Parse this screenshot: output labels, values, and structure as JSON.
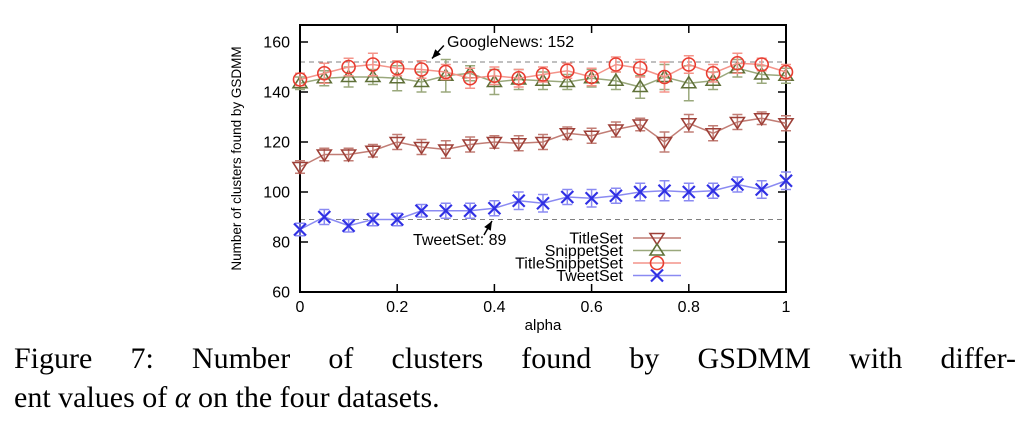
{
  "figure": {
    "caption": {
      "line1": "Figure 7: Number of clusters found by GSDMM with differ-",
      "line2_pre": "ent values of ",
      "alpha_symbol": "α",
      "line2_post": " on the four datasets."
    }
  },
  "chart_data": {
    "type": "line",
    "title": "",
    "xlabel": "alpha",
    "ylabel": "Number of clusters found by GSDMM",
    "xlim": [
      0,
      1
    ],
    "ylim": [
      60,
      166.8
    ],
    "grid": false,
    "legend_position": "bottom-right-inside",
    "x_ticks": {
      "values": [
        0,
        0.2,
        0.4,
        0.6,
        0.8,
        1
      ],
      "labels": [
        "0",
        "0.2",
        "0.4",
        "0.6",
        "0.8",
        "1"
      ]
    },
    "y_ticks": {
      "values": [
        60,
        80,
        100,
        120,
        140,
        160
      ],
      "labels": [
        "60",
        "80",
        "100",
        "120",
        "140",
        "160"
      ]
    },
    "x": [
      0,
      0.05,
      0.1,
      0.15,
      0.2,
      0.25,
      0.3,
      0.35,
      0.4,
      0.45,
      0.5,
      0.55,
      0.6,
      0.65,
      0.7,
      0.75,
      0.8,
      0.85,
      0.9,
      0.95,
      1
    ],
    "series": [
      {
        "name": "TitleSet",
        "marker": "triangle-down",
        "line_color": "#c17d75",
        "marker_color": "#9e4038",
        "values": [
          110,
          115,
          115,
          116.5,
          120,
          118,
          117,
          119,
          120,
          119.5,
          120,
          123.5,
          122.5,
          125,
          127,
          120,
          127.5,
          123.5,
          128,
          129.5,
          127.5
        ],
        "errors": [
          2.5,
          2.5,
          2.5,
          2.5,
          3,
          3,
          3.5,
          3,
          2.5,
          3,
          3,
          2.5,
          3,
          3,
          2.5,
          4,
          3.5,
          3,
          3,
          2.5,
          3
        ]
      },
      {
        "name": "SnippetSet",
        "marker": "triangle-up",
        "line_color": "#9aa87c",
        "marker_color": "#5f7038",
        "values": [
          143.5,
          145.5,
          146,
          146,
          145.5,
          144,
          146.5,
          147.5,
          144,
          145,
          144.5,
          144,
          145.5,
          144.5,
          142,
          146,
          143.5,
          144.5,
          149.5,
          147,
          146.5
        ],
        "errors": [
          2.5,
          3,
          4,
          3,
          5,
          4,
          6.5,
          3,
          5,
          4,
          3.5,
          3,
          3.5,
          3.5,
          4.5,
          5,
          7,
          3.5,
          3.5,
          3.5,
          3
        ]
      },
      {
        "name": "TitleSnippetSet",
        "marker": "circle",
        "line_color": "#f4948a",
        "marker_color": "#e83c30",
        "values": [
          145,
          147.5,
          150,
          151,
          149.5,
          149,
          148,
          145.5,
          146.5,
          145.5,
          147,
          148.5,
          146,
          151,
          149.5,
          146,
          151,
          147.5,
          151.5,
          151,
          148
        ],
        "errors": [
          2.5,
          4,
          3.5,
          4.5,
          3,
          3.5,
          3,
          4,
          3.5,
          3.5,
          3,
          3,
          3.5,
          3,
          3.5,
          6,
          3.5,
          3.5,
          4,
          2.5,
          3
        ]
      },
      {
        "name": "TweetSet",
        "marker": "x",
        "line_color": "#8a8af2",
        "marker_color": "#3030e4",
        "values": [
          85,
          90,
          86.5,
          89,
          89,
          92.5,
          92.5,
          92.5,
          93.5,
          96.5,
          95.5,
          98,
          97.5,
          98.5,
          100,
          100.5,
          100,
          100.5,
          103,
          101,
          104.5
        ],
        "errors": [
          2.5,
          3,
          2.5,
          2.5,
          2.5,
          2.5,
          3,
          3,
          3,
          3.5,
          3.5,
          3,
          3.5,
          3,
          3.5,
          4,
          3.5,
          3,
          3,
          3.5,
          3.5
        ]
      }
    ],
    "reference_lines": [
      {
        "label": "GoogleNews: 152",
        "value": 152,
        "color": "#808080"
      },
      {
        "label": "TweetSet: 89",
        "value": 89,
        "color": "#808080"
      }
    ],
    "annotations": [
      {
        "text": "GoogleNews: 152",
        "x": 0.3025,
        "y": 158.0,
        "anchor": "start",
        "arrow": {
          "from": [
            0.296,
            158.6
          ],
          "to": [
            0.2716,
            153.4
          ]
        }
      },
      {
        "text": "TweetSet: 89",
        "x": 0.2325,
        "y": 78.8,
        "anchor": "start",
        "arrow": {
          "from": [
            0.3786,
            82.8
          ],
          "to": [
            0.395,
            88.4
          ]
        }
      }
    ]
  }
}
